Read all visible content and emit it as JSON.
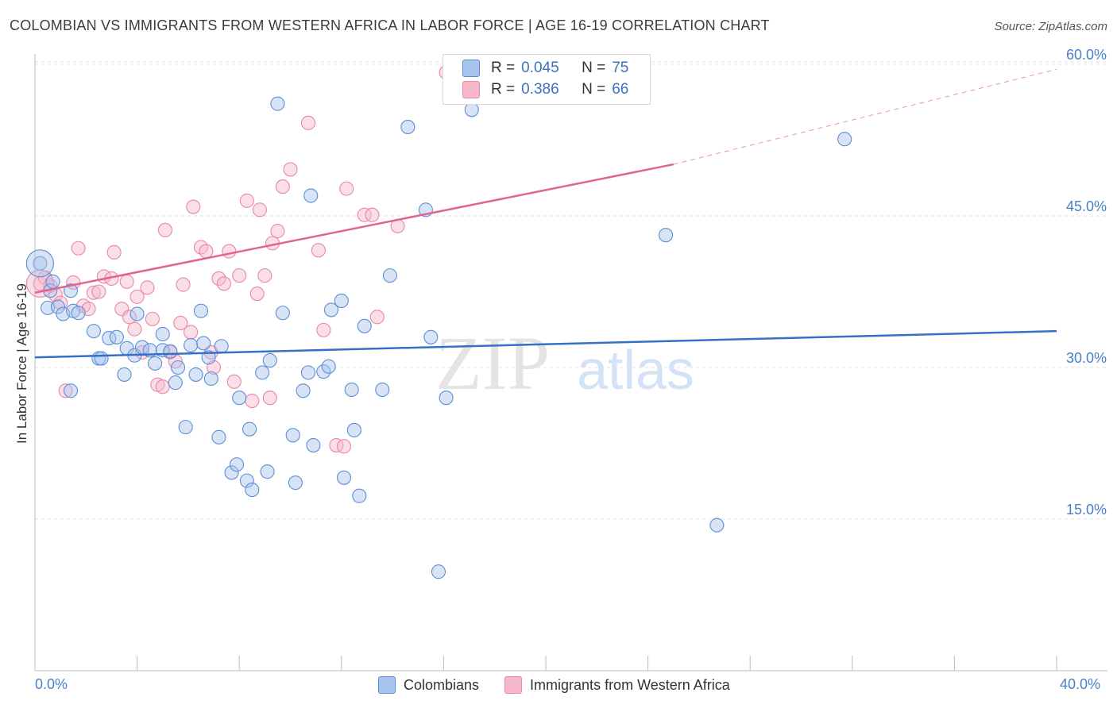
{
  "title": "COLOMBIAN VS IMMIGRANTS FROM WESTERN AFRICA IN LABOR FORCE | AGE 16-19 CORRELATION CHART",
  "source": "Source: ZipAtlas.com",
  "watermark": {
    "zip": "ZIP",
    "atlas": "atlas"
  },
  "colors": {
    "blue_fill": "#a9c4ec",
    "blue_stroke": "#5a8fd6",
    "blue_line": "#3370c8",
    "pink_fill": "#f6b8cb",
    "pink_stroke": "#e887a7",
    "pink_line": "#e0658d",
    "tick_text": "#4a80c8",
    "grid": "#e3e3e3"
  },
  "legend_box": {
    "rows": [
      {
        "r_label": "R =",
        "r_value": "0.045",
        "n_label": "N =",
        "n_value": "75",
        "color": "#a9c4ec"
      },
      {
        "r_label": "R =",
        "r_value": "0.386",
        "n_label": "N =",
        "n_value": "66",
        "color": "#f6b8cb"
      }
    ]
  },
  "chart_data": {
    "type": "scatter",
    "title": "COLOMBIAN VS IMMIGRANTS FROM WESTERN AFRICA IN LABOR FORCE | AGE 16-19 CORRELATION CHART",
    "xlabel": "",
    "ylabel": "In Labor Force | Age 16-19",
    "xlim": [
      0,
      40
    ],
    "ylim": [
      0,
      65
    ],
    "x_tick_labels": [
      "0.0%",
      "40.0%"
    ],
    "y_ticks": [
      15,
      30,
      45,
      60
    ],
    "y_tick_labels": [
      "15.0%",
      "30.0%",
      "45.0%",
      "60.0%"
    ],
    "grid": true,
    "legend_position": "bottom",
    "series": [
      {
        "name": "Colombians",
        "color": "#a9c4ec",
        "trend": {
          "x": [
            0,
            40
          ],
          "y": [
            31.0,
            33.6
          ]
        },
        "points": [
          [
            0.2,
            40.3
          ],
          [
            0.5,
            35.9
          ],
          [
            0.6,
            37.6
          ],
          [
            0.7,
            38.5
          ],
          [
            0.9,
            36.0
          ],
          [
            1.1,
            35.3
          ],
          [
            1.4,
            37.6
          ],
          [
            1.5,
            35.6
          ],
          [
            1.7,
            35.4
          ],
          [
            1.4,
            27.7
          ],
          [
            2.3,
            33.6
          ],
          [
            2.5,
            30.9
          ],
          [
            2.6,
            30.9
          ],
          [
            2.9,
            32.9
          ],
          [
            3.2,
            33.0
          ],
          [
            3.5,
            29.3
          ],
          [
            3.6,
            31.9
          ],
          [
            3.9,
            31.2
          ],
          [
            4.0,
            35.3
          ],
          [
            4.2,
            32.0
          ],
          [
            4.5,
            31.7
          ],
          [
            4.7,
            30.4
          ],
          [
            5.0,
            31.7
          ],
          [
            5.0,
            33.3
          ],
          [
            5.3,
            31.6
          ],
          [
            5.5,
            28.5
          ],
          [
            5.6,
            30.0
          ],
          [
            5.9,
            24.1
          ],
          [
            6.1,
            32.2
          ],
          [
            6.3,
            29.3
          ],
          [
            6.5,
            35.6
          ],
          [
            6.6,
            32.4
          ],
          [
            6.8,
            31.0
          ],
          [
            6.9,
            28.9
          ],
          [
            7.2,
            23.1
          ],
          [
            7.3,
            32.1
          ],
          [
            7.7,
            19.6
          ],
          [
            7.9,
            20.4
          ],
          [
            8.0,
            27.0
          ],
          [
            8.3,
            18.8
          ],
          [
            8.4,
            23.9
          ],
          [
            8.5,
            17.9
          ],
          [
            8.9,
            29.5
          ],
          [
            9.1,
            19.7
          ],
          [
            9.2,
            30.7
          ],
          [
            9.5,
            56.1
          ],
          [
            9.7,
            35.4
          ],
          [
            10.1,
            23.3
          ],
          [
            10.2,
            18.6
          ],
          [
            10.5,
            27.7
          ],
          [
            10.7,
            29.5
          ],
          [
            10.8,
            47.0
          ],
          [
            10.9,
            22.3
          ],
          [
            11.3,
            29.6
          ],
          [
            11.5,
            30.1
          ],
          [
            11.6,
            35.7
          ],
          [
            12.0,
            36.6
          ],
          [
            12.1,
            19.1
          ],
          [
            12.4,
            27.8
          ],
          [
            12.5,
            23.8
          ],
          [
            12.7,
            17.3
          ],
          [
            12.9,
            34.1
          ],
          [
            13.6,
            27.8
          ],
          [
            13.9,
            39.1
          ],
          [
            14.6,
            53.8
          ],
          [
            15.3,
            45.6
          ],
          [
            15.5,
            33.0
          ],
          [
            15.8,
            9.8
          ],
          [
            16.1,
            27.0
          ],
          [
            17.1,
            55.5
          ],
          [
            24.7,
            43.1
          ],
          [
            26.7,
            14.4
          ],
          [
            31.7,
            52.6
          ]
        ],
        "large_point": [
          0.2,
          40.3
        ]
      },
      {
        "name": "Immigrants from Western Africa",
        "color": "#f6b8cb",
        "trend": {
          "x": [
            0,
            25
          ],
          "y": [
            37.4,
            50.1
          ]
        },
        "trend_dashed": {
          "x": [
            25,
            40
          ],
          "y": [
            50.1,
            59.5
          ]
        },
        "points": [
          [
            0.2,
            38.3
          ],
          [
            0.4,
            38.9
          ],
          [
            0.6,
            38.1
          ],
          [
            0.8,
            37.2
          ],
          [
            1.0,
            36.4
          ],
          [
            1.2,
            27.7
          ],
          [
            1.5,
            38.4
          ],
          [
            1.7,
            41.8
          ],
          [
            1.9,
            36.1
          ],
          [
            2.1,
            35.8
          ],
          [
            2.3,
            37.4
          ],
          [
            2.5,
            37.5
          ],
          [
            2.7,
            39.0
          ],
          [
            3.0,
            38.8
          ],
          [
            3.1,
            41.4
          ],
          [
            3.4,
            35.8
          ],
          [
            3.6,
            38.5
          ],
          [
            3.7,
            35.0
          ],
          [
            3.9,
            33.8
          ],
          [
            4.0,
            37.0
          ],
          [
            4.2,
            31.5
          ],
          [
            4.4,
            37.9
          ],
          [
            4.6,
            34.8
          ],
          [
            4.8,
            28.3
          ],
          [
            5.0,
            28.1
          ],
          [
            5.1,
            43.6
          ],
          [
            5.3,
            31.5
          ],
          [
            5.5,
            30.6
          ],
          [
            5.7,
            34.4
          ],
          [
            5.8,
            38.2
          ],
          [
            6.1,
            33.5
          ],
          [
            6.2,
            45.9
          ],
          [
            6.5,
            41.9
          ],
          [
            6.7,
            41.5
          ],
          [
            6.9,
            31.5
          ],
          [
            7.0,
            30.0
          ],
          [
            7.2,
            38.8
          ],
          [
            7.4,
            38.3
          ],
          [
            7.6,
            41.5
          ],
          [
            7.8,
            28.6
          ],
          [
            8.0,
            39.1
          ],
          [
            8.3,
            46.5
          ],
          [
            8.5,
            26.7
          ],
          [
            8.7,
            37.3
          ],
          [
            8.8,
            45.6
          ],
          [
            9.0,
            39.1
          ],
          [
            9.2,
            27.0
          ],
          [
            9.3,
            42.3
          ],
          [
            9.5,
            43.5
          ],
          [
            9.7,
            47.9
          ],
          [
            10.0,
            49.6
          ],
          [
            10.7,
            54.2
          ],
          [
            11.1,
            41.6
          ],
          [
            11.3,
            33.7
          ],
          [
            11.8,
            22.3
          ],
          [
            12.1,
            22.2
          ],
          [
            12.2,
            47.7
          ],
          [
            12.9,
            45.1
          ],
          [
            13.2,
            45.1
          ],
          [
            13.4,
            35.0
          ],
          [
            14.2,
            44.0
          ],
          [
            16.1,
            59.2
          ],
          [
            22.5,
            58.6
          ]
        ],
        "large_point": [
          0.2,
          38.3
        ]
      }
    ]
  },
  "legend_bottom": [
    {
      "label": "Colombians",
      "color": "#a9c4ec"
    },
    {
      "label": "Immigrants from Western Africa",
      "color": "#f6b8cb"
    }
  ]
}
